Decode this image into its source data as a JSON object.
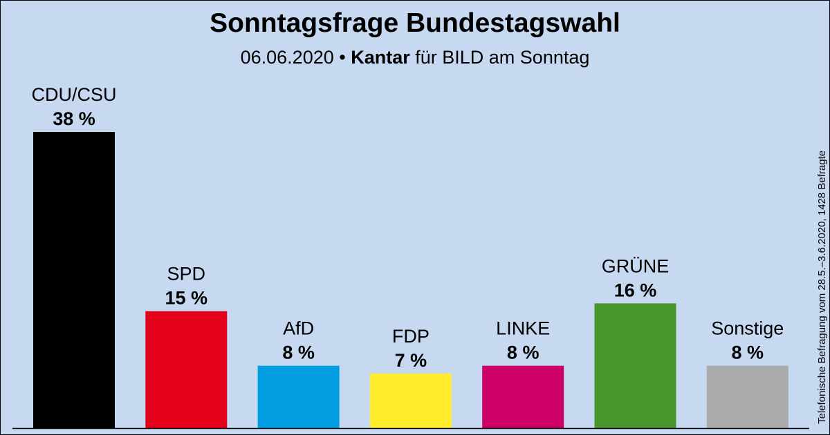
{
  "title": "Sonntagsfrage Bundestagswahl",
  "subtitle": {
    "date": "06.06.2020",
    "separator": " • ",
    "institute": "Kantar",
    "client": " für BILD am Sonntag"
  },
  "side_note": "Telefonische Befragung vom 28.5.–3.6.2020, 1428 Befragte",
  "chart_data": {
    "type": "bar",
    "title": "Sonntagsfrage Bundestagswahl",
    "categories": [
      "CDU/CSU",
      "SPD",
      "AfD",
      "FDP",
      "LINKE",
      "GRÜNE",
      "Sonstige"
    ],
    "values": [
      38,
      15,
      8,
      7,
      8,
      16,
      8
    ],
    "value_labels": [
      "38 %",
      "15 %",
      "8 %",
      "7 %",
      "8 %",
      "16 %",
      "8 %"
    ],
    "colors": [
      "#000000",
      "#e3001b",
      "#009ee0",
      "#ffed2e",
      "#cc0066",
      "#46962b",
      "#aaaaaa"
    ],
    "ylim": [
      0,
      38
    ],
    "grid": false,
    "legend": "none",
    "xlabel": "",
    "ylabel": ""
  }
}
